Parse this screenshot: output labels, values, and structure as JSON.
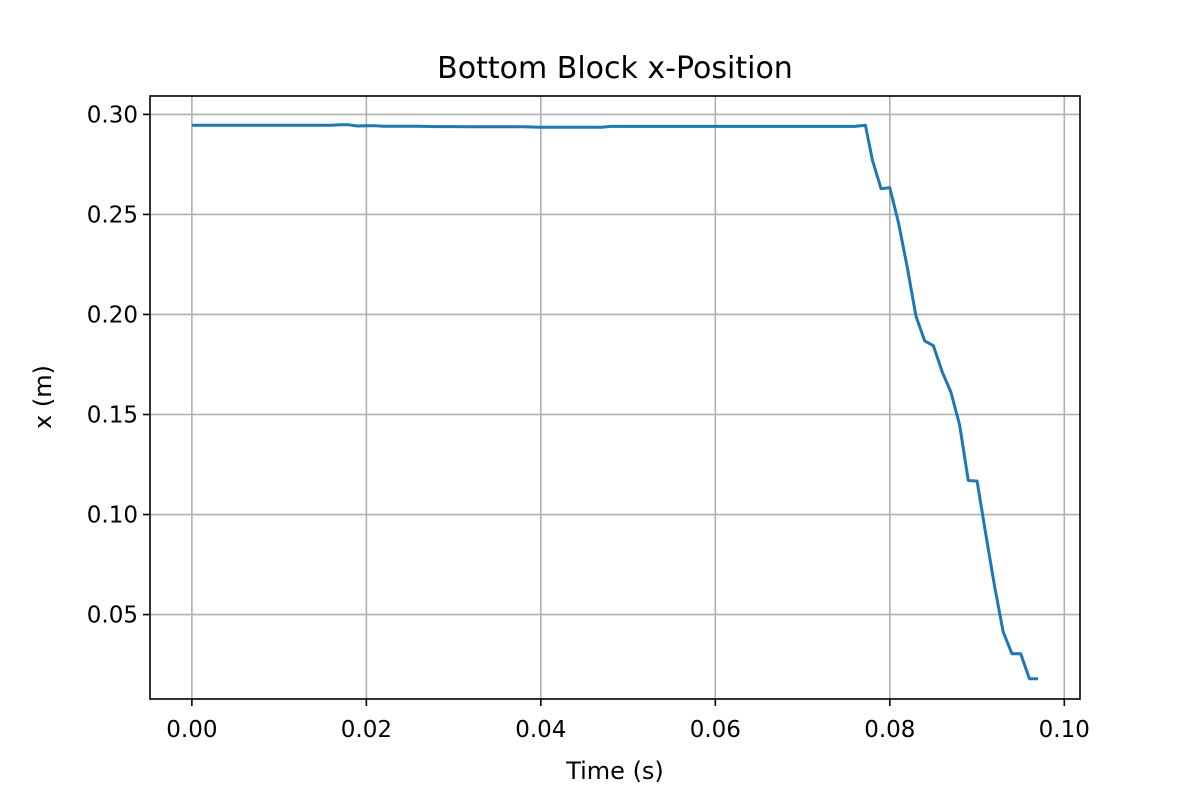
{
  "chart_data": {
    "type": "line",
    "title": "Bottom Block x-Position",
    "xlabel": "Time (s)",
    "ylabel": "x (m)",
    "xlim": [
      -0.0048,
      0.1018
    ],
    "ylim": [
      0.0078,
      0.3092
    ],
    "xticks": [
      0.0,
      0.02,
      0.04,
      0.06,
      0.08,
      0.1
    ],
    "xtick_labels": [
      "0.00",
      "0.02",
      "0.04",
      "0.06",
      "0.08",
      "0.10"
    ],
    "yticks": [
      0.05,
      0.1,
      0.15,
      0.2,
      0.25,
      0.3
    ],
    "ytick_labels": [
      "0.05",
      "0.10",
      "0.15",
      "0.20",
      "0.25",
      "0.30"
    ],
    "grid": true,
    "colors": {
      "line": "#1f77b4",
      "grid": "#b0b0b0",
      "axes": "#000000"
    },
    "series": [
      {
        "x": [
          0.0,
          0.002,
          0.004,
          0.006,
          0.008,
          0.01,
          0.012,
          0.014,
          0.016,
          0.017,
          0.018,
          0.019,
          0.02,
          0.021,
          0.022,
          0.024,
          0.026,
          0.028,
          0.03,
          0.032,
          0.034,
          0.036,
          0.038,
          0.04,
          0.042,
          0.044,
          0.046,
          0.047,
          0.048,
          0.05,
          0.055,
          0.06,
          0.065,
          0.07,
          0.075,
          0.076,
          0.0772,
          0.078,
          0.079,
          0.08,
          0.081,
          0.082,
          0.083,
          0.084,
          0.085,
          0.086,
          0.087,
          0.088,
          0.089,
          0.09,
          0.091,
          0.092,
          0.093,
          0.094,
          0.095,
          0.096,
          0.097
        ],
        "values": [
          0.2946,
          0.2946,
          0.2946,
          0.2946,
          0.2946,
          0.2946,
          0.2946,
          0.2946,
          0.2946,
          0.2948,
          0.2948,
          0.2942,
          0.2943,
          0.2943,
          0.2941,
          0.2941,
          0.2941,
          0.2939,
          0.2939,
          0.2938,
          0.2938,
          0.2938,
          0.2938,
          0.2936,
          0.2936,
          0.2936,
          0.2936,
          0.2936,
          0.294,
          0.294,
          0.294,
          0.294,
          0.294,
          0.294,
          0.294,
          0.294,
          0.2946,
          0.2772,
          0.2628,
          0.2634,
          0.2458,
          0.2235,
          0.1991,
          0.1868,
          0.1844,
          0.1713,
          0.1612,
          0.1448,
          0.117,
          0.1167,
          0.0901,
          0.0644,
          0.0413,
          0.0304,
          0.0304,
          0.0179,
          0.0179
        ]
      }
    ]
  }
}
